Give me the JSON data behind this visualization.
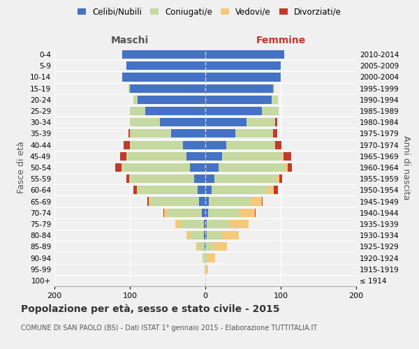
{
  "age_groups": [
    "100+",
    "95-99",
    "90-94",
    "85-89",
    "80-84",
    "75-79",
    "70-74",
    "65-69",
    "60-64",
    "55-59",
    "50-54",
    "45-49",
    "40-44",
    "35-39",
    "30-34",
    "25-29",
    "20-24",
    "15-19",
    "10-14",
    "5-9",
    "0-4"
  ],
  "birth_years": [
    "≤ 1914",
    "1915-1919",
    "1920-1924",
    "1925-1929",
    "1930-1934",
    "1935-1939",
    "1940-1944",
    "1945-1949",
    "1950-1954",
    "1955-1959",
    "1960-1964",
    "1965-1969",
    "1970-1974",
    "1975-1979",
    "1980-1984",
    "1985-1989",
    "1990-1994",
    "1995-1999",
    "2000-2004",
    "2005-2009",
    "2010-2014"
  ],
  "maschi": {
    "celibi": [
      0,
      0,
      0,
      1,
      2,
      2,
      5,
      8,
      10,
      15,
      20,
      25,
      30,
      45,
      60,
      80,
      90,
      100,
      110,
      105,
      110
    ],
    "coniugati": [
      0,
      1,
      3,
      8,
      18,
      30,
      45,
      65,
      80,
      85,
      90,
      80,
      70,
      55,
      40,
      20,
      5,
      2,
      0,
      0,
      0
    ],
    "vedovi": [
      0,
      0,
      1,
      3,
      5,
      8,
      5,
      2,
      1,
      1,
      1,
      0,
      0,
      0,
      0,
      0,
      0,
      0,
      0,
      0,
      0
    ],
    "divorziati": [
      0,
      0,
      0,
      0,
      0,
      0,
      1,
      2,
      4,
      4,
      8,
      8,
      8,
      2,
      0,
      0,
      0,
      0,
      0,
      0,
      0
    ]
  },
  "femmine": {
    "nubili": [
      0,
      0,
      0,
      1,
      2,
      2,
      4,
      5,
      8,
      12,
      18,
      22,
      28,
      40,
      55,
      75,
      88,
      90,
      100,
      100,
      105
    ],
    "coniugate": [
      0,
      1,
      3,
      10,
      20,
      30,
      40,
      55,
      75,
      82,
      88,
      80,
      65,
      50,
      38,
      22,
      8,
      2,
      0,
      0,
      0
    ],
    "vedove": [
      0,
      3,
      10,
      18,
      22,
      25,
      22,
      15,
      8,
      4,
      3,
      2,
      0,
      0,
      0,
      0,
      0,
      0,
      0,
      0,
      0
    ],
    "divorziate": [
      0,
      0,
      0,
      0,
      0,
      0,
      1,
      1,
      5,
      4,
      6,
      10,
      8,
      5,
      2,
      0,
      0,
      0,
      0,
      0,
      0
    ]
  },
  "colors": {
    "celibi": "#4472C4",
    "coniugati": "#c5d9a0",
    "vedovi": "#f5c97a",
    "divorziati": "#c0392b"
  },
  "xlim": 200,
  "title": "Popolazione per età, sesso e stato civile - 2015",
  "subtitle": "COMUNE DI SAN PAOLO (BS) - Dati ISTAT 1° gennaio 2015 - Elaborazione TUTTITALIA.IT",
  "ylabel": "Fasce di età",
  "ylabel_right": "Anni di nascita",
  "xlabel_left": "Maschi",
  "xlabel_right": "Femmine",
  "background_color": "#f0f0f0"
}
